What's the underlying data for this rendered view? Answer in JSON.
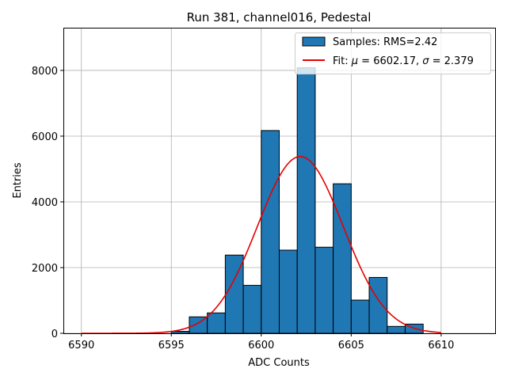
{
  "chart_data": {
    "type": "bar",
    "title": "Run 381, channel016, Pedestal",
    "xlabel": "ADC Counts",
    "ylabel": "Entries",
    "xlim": [
      6589,
      6613
    ],
    "ylim": [
      0,
      9300
    ],
    "xticks": [
      6590,
      6595,
      6600,
      6605,
      6610
    ],
    "yticks": [
      0,
      2000,
      4000,
      6000,
      8000
    ],
    "grid": true,
    "legend_position": "top-right",
    "series": [
      {
        "name": "Samples: RMS=2.42",
        "kind": "histogram",
        "color": "#1f77b4",
        "edge_color": "#000000",
        "bins": [
          {
            "left": 6595,
            "right": 6596,
            "value": 60
          },
          {
            "left": 6596,
            "right": 6597,
            "value": 500
          },
          {
            "left": 6597,
            "right": 6598,
            "value": 620
          },
          {
            "left": 6598,
            "right": 6599,
            "value": 2380
          },
          {
            "left": 6599,
            "right": 6600,
            "value": 1460
          },
          {
            "left": 6600,
            "right": 6601,
            "value": 6170
          },
          {
            "left": 6601,
            "right": 6602,
            "value": 2530
          },
          {
            "left": 6602,
            "right": 6603,
            "value": 8080
          },
          {
            "left": 6603,
            "right": 6604,
            "value": 2620
          },
          {
            "left": 6604,
            "right": 6605,
            "value": 4550
          },
          {
            "left": 6605,
            "right": 6606,
            "value": 1010
          },
          {
            "left": 6606,
            "right": 6607,
            "value": 1700
          },
          {
            "left": 6607,
            "right": 6608,
            "value": 210
          },
          {
            "left": 6608,
            "right": 6609,
            "value": 280
          }
        ]
      },
      {
        "name": "Fit: μ = 6602.17, σ = 2.379",
        "name_parts": {
          "prefix": "Fit: ",
          "mu": "μ",
          "mid": " = 6602.17, ",
          "sigma": "σ",
          "suffix": " = 2.379"
        },
        "kind": "gaussian_fit",
        "color": "#e60000",
        "mu": 6602.17,
        "sigma": 2.379,
        "amplitude": 5380,
        "x_range": [
          6590,
          6610
        ]
      }
    ]
  }
}
